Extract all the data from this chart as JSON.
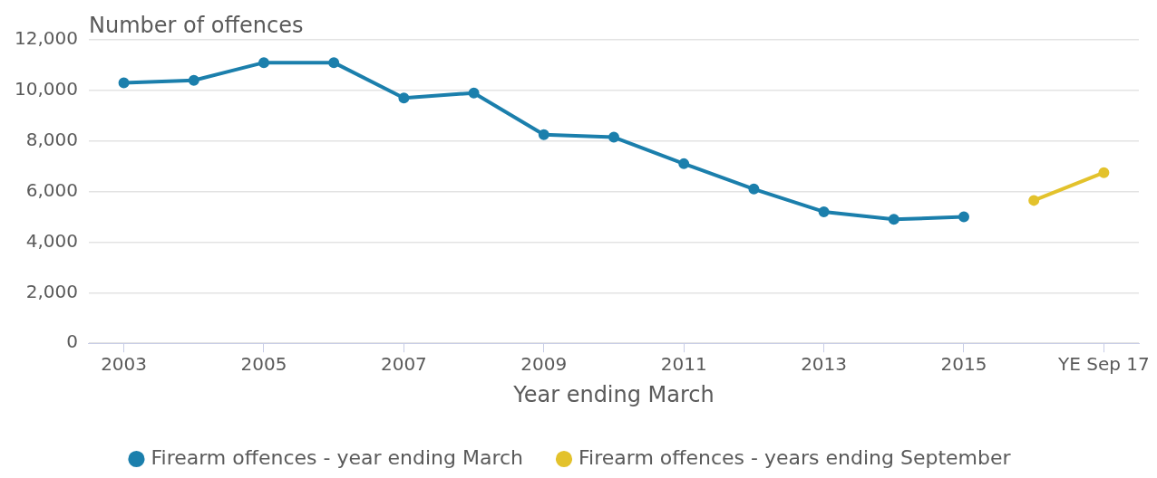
{
  "chart_data": {
    "type": "line",
    "ylabel": "Number of offences",
    "xlabel": "Year ending March",
    "categories": [
      "2003",
      null,
      "2005",
      null,
      "2007",
      null,
      "2009",
      null,
      "2011",
      null,
      "2013",
      null,
      "2015",
      null,
      "YE Sep 17"
    ],
    "series": [
      {
        "name": "Firearm offences - year ending March",
        "color": "#1b7fac",
        "values": [
          10300,
          10400,
          11100,
          11100,
          9700,
          9900,
          8250,
          8150,
          7100,
          6100,
          5200,
          4900,
          5000,
          null,
          null
        ]
      },
      {
        "name": "Firearm offences - years ending September",
        "color": "#e3c22c",
        "values": [
          null,
          null,
          null,
          null,
          null,
          null,
          null,
          null,
          null,
          null,
          null,
          null,
          null,
          5650,
          6750
        ]
      }
    ],
    "ylim": [
      0,
      12000
    ],
    "yticks": [
      0,
      {
        "value": 2000,
        "label": "2,000"
      },
      {
        "value": 4000,
        "label": "4,000"
      },
      {
        "value": 6000,
        "label": "6,000"
      },
      {
        "value": 8000,
        "label": "8,000"
      },
      {
        "value": 10000,
        "label": "10,000"
      },
      {
        "value": 12000,
        "label": "12,000"
      }
    ],
    "grid": "y",
    "legend": "bottom",
    "marker": "circle",
    "line_style": "solid"
  }
}
